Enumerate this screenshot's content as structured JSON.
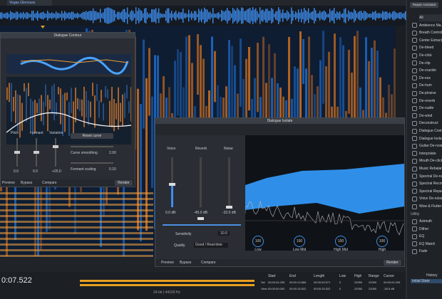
{
  "header": {
    "tab": "Vegas Glennuss",
    "assistant": "Repair Assistant"
  },
  "modules": {
    "items": [
      "All",
      "Ambience Ma...",
      "Breath Control",
      "Center Extract",
      "De-bleed",
      "De-click",
      "De-clip",
      "De-crackle",
      "De-ess",
      "De-hum",
      "De-plosive",
      "De-reverb",
      "De-rustle",
      "De-wind",
      "Deconstruct",
      "Dialogue Cont...",
      "Dialogue Isola...",
      "Guitar De-noise",
      "Interpolate",
      "Mouth De-click",
      "Music Rebalance",
      "Spectral De-noise",
      "Spectral Recovery",
      "Spectral Repair",
      "Voice De-noise",
      "Wow & Flutter"
    ],
    "utility": "Utility",
    "utility_items": [
      "Azimuth",
      "Dither",
      "EQ",
      "EQ Match",
      "Fade"
    ],
    "history": "History",
    "history_item": "Initial State"
  },
  "contour": {
    "title": "Dialogue Contour",
    "sliders": [
      {
        "label": "Pitch",
        "value": "0.0"
      },
      {
        "label": "Formant",
        "value": "0.0"
      },
      {
        "label": "Variation",
        "value": "+25.0"
      }
    ],
    "reset": "Reset curve",
    "smoothing_label": "Curve smoothing",
    "smoothing_value": "2.00",
    "scaling_label": "Formant scaling",
    "scaling_value": "0.10",
    "preview": "Preview",
    "bypass": "Bypass",
    "compare": "Compare",
    "render": "Render"
  },
  "isolate": {
    "title": "Dialogue Isolate",
    "faders": [
      {
        "label": "Voice",
        "value": "0.0 dB"
      },
      {
        "label": "Reverb",
        "value": "-45.0 dB"
      },
      {
        "label": "Noise",
        "value": "-32.0 dB"
      }
    ],
    "sensitivity_label": "Sensitivity",
    "sensitivity_value": "10.0",
    "quality_label": "Quality",
    "quality_value": "Good / Real-time",
    "bands": [
      {
        "value": "100",
        "label": "Low"
      },
      {
        "value": "100",
        "label": "Low Mid"
      },
      {
        "value": "100",
        "label": "High Mid"
      },
      {
        "value": "100",
        "label": "High"
      }
    ],
    "preview": "Preview",
    "bypass": "Bypass",
    "compare": "Compare",
    "render": "Render"
  },
  "transport": {
    "time": "0:07.522",
    "format": "24-bit | 44100 Hz"
  },
  "selection": {
    "headers": [
      "Start",
      "End",
      "Length",
      "Low",
      "High",
      "Range",
      "Cursor"
    ],
    "rows": [
      [
        "Sel",
        "00:00:04.295",
        "00:00:13.866",
        "00:00:09.571",
        "0",
        "22050",
        "22050",
        "00:00:04.295"
      ],
      [
        "View",
        "00:00:00.000",
        "00:00:15.522",
        "00:00:15.522",
        "0",
        "22050",
        "22050",
        "-28.5 dB"
      ]
    ]
  }
}
